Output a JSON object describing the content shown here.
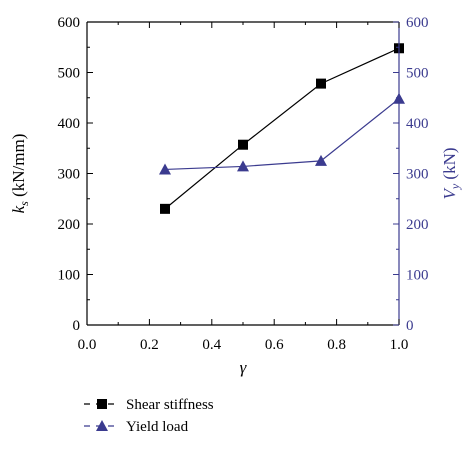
{
  "chart_data": {
    "type": "line",
    "title": "",
    "x": [
      0.25,
      0.5,
      0.75,
      1.0
    ],
    "xlabel": "γ",
    "xlim": [
      0.0,
      1.0
    ],
    "xticks": [
      "0.0",
      "0.2",
      "0.4",
      "0.6",
      "0.8",
      "1.0"
    ],
    "ylabel_left": {
      "main": "k",
      "sub": "s",
      "unit": " (kN/mm)"
    },
    "ylabel_right": {
      "main": "V",
      "sub": "y",
      "unit": " (kN)"
    },
    "ylim_left": [
      0,
      600
    ],
    "ylim_right": [
      0,
      600
    ],
    "yticks_left": [
      "0",
      "100",
      "200",
      "300",
      "400",
      "500",
      "600"
    ],
    "yticks_right": [
      "0",
      "100",
      "200",
      "300",
      "400",
      "500",
      "600"
    ],
    "series": [
      {
        "name": "Shear stiffness",
        "axis": "left",
        "marker": "square",
        "color": "#000000",
        "values": [
          230,
          357,
          478,
          548
        ]
      },
      {
        "name": "Yield load",
        "axis": "right",
        "marker": "triangle",
        "color": "#3b3b8f",
        "values": [
          308,
          314,
          325,
          448
        ]
      }
    ],
    "grid": false,
    "legend": "bottom-left"
  }
}
